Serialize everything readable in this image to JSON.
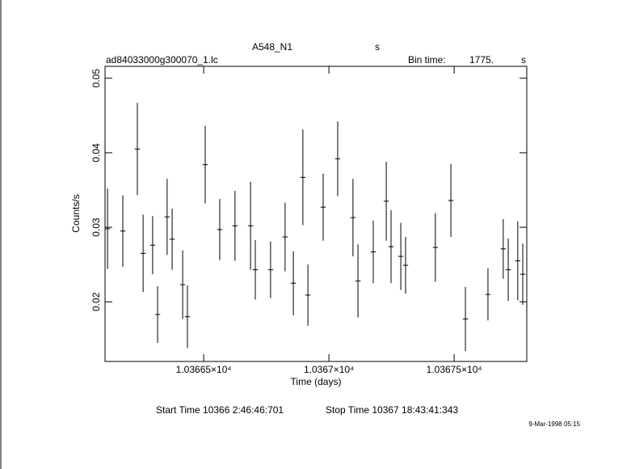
{
  "chart_data": {
    "type": "errorbar",
    "title": "A548_N1",
    "title_suffix": "s",
    "filename": "ad84033000g300070_1.lc",
    "bin_time_label": "Bin time:",
    "bin_time": {
      "value": 1775,
      "label": "1775."
    },
    "bin_time_unit": "s",
    "xlabel": "Time (days)",
    "ylabel": "Counts/s",
    "start_time": "Start Time 10366  2:46:46:701",
    "stop_time": "Stop Time 10367 18:43:41:343",
    "date_stamp": "9-Mar-1998 05:15",
    "color": "#000000",
    "xlim": [
      10366.106,
      10367.79
    ],
    "ylim": [
      0.012,
      0.0516
    ],
    "xticks": [
      {
        "value": 10366.5,
        "label": "1.03665×10⁴"
      },
      {
        "value": 10367,
        "label": "1.0367×10⁴"
      },
      {
        "value": 10367.5,
        "label": "1.03675×10⁴"
      }
    ],
    "yticks": [
      0.02,
      0.03,
      0.04,
      0.05
    ],
    "x": [
      10366.116,
      10366.177,
      10366.235,
      10366.258,
      10366.296,
      10366.316,
      10366.354,
      10366.374,
      10366.416,
      10366.435,
      10366.506,
      10366.564,
      10366.625,
      10366.687,
      10366.706,
      10366.767,
      10366.825,
      10366.858,
      10366.896,
      10366.916,
      10366.977,
      10367.035,
      10367.096,
      10367.116,
      10367.177,
      10367.229,
      10367.248,
      10367.287,
      10367.306,
      10367.425,
      10367.487,
      10367.545,
      10367.635,
      10367.696,
      10367.716,
      10367.754,
      10367.774
    ],
    "values": [
      0.0298,
      0.0295,
      0.0405,
      0.0265,
      0.0276,
      0.0183,
      0.0314,
      0.0284,
      0.0223,
      0.018,
      0.0384,
      0.0297,
      0.0302,
      0.0302,
      0.0243,
      0.0243,
      0.0287,
      0.0225,
      0.0367,
      0.0209,
      0.0327,
      0.0392,
      0.0313,
      0.0228,
      0.0267,
      0.0335,
      0.0274,
      0.0261,
      0.0249,
      0.0273,
      0.0336,
      0.0177,
      0.021,
      0.0271,
      0.0243,
      0.0255,
      0.0237
    ],
    "errors": [
      0.0054,
      0.0048,
      0.0062,
      0.0052,
      0.0039,
      0.0038,
      0.0051,
      0.0041,
      0.0046,
      0.0042,
      0.0052,
      0.0041,
      0.0047,
      0.0059,
      0.004,
      0.0038,
      0.0046,
      0.0043,
      0.0064,
      0.0041,
      0.0045,
      0.005,
      0.0052,
      0.0049,
      0.0042,
      0.0053,
      0.0049,
      0.0045,
      0.0038,
      0.0046,
      0.0049,
      0.0043,
      0.0035,
      0.004,
      0.0042,
      0.0053,
      0.0041
    ]
  }
}
